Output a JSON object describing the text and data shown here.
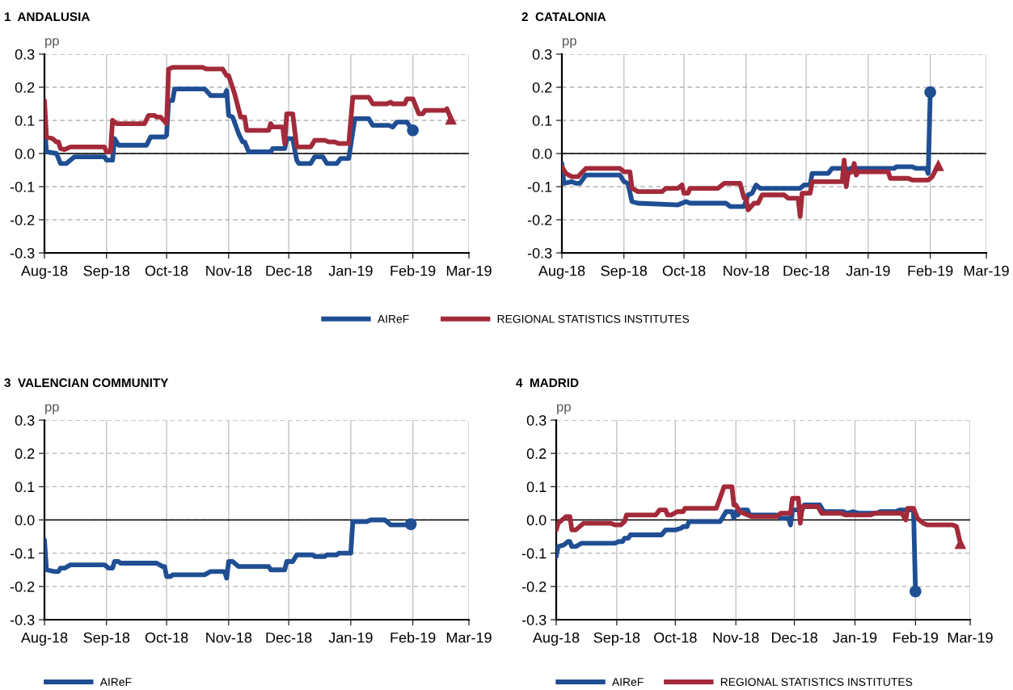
{
  "chart_data": [
    {
      "type": "line",
      "title": "1  ANDALUSIA",
      "ylabel": "pp",
      "legend": "bottom",
      "grid": true,
      "line_style": "solid",
      "xlim": [
        "2018-08-01",
        "2019-03-01"
      ],
      "xticks": [
        {
          "value": "2018-08-01",
          "label": "Aug-18"
        },
        {
          "value": "2018-09-01",
          "label": "Sep-18"
        },
        {
          "value": "2018-10-01",
          "label": "Oct-18"
        },
        {
          "value": "2018-11-01",
          "label": "Nov-18"
        },
        {
          "value": "2018-12-01",
          "label": "Dec-18"
        },
        {
          "value": "2019-01-01",
          "label": "Jan-19"
        },
        {
          "value": "2019-02-01",
          "label": "Feb-19"
        },
        {
          "value": "2019-03-01",
          "label": "Mar-19"
        }
      ],
      "ylim": [
        -0.3,
        0.3
      ],
      "yticks": [
        {
          "value": -0.3,
          "label": "-0.3"
        },
        {
          "value": -0.2,
          "label": "-0.2"
        },
        {
          "value": -0.1,
          "label": "-0.1"
        },
        {
          "value": 0,
          "label": "0.0"
        },
        {
          "value": 0.1,
          "label": "0.1"
        },
        {
          "value": 0.2,
          "label": "0.2"
        },
        {
          "value": 0.3,
          "label": "0.3"
        }
      ],
      "ref_lines": [
        {
          "axis": "y",
          "value": 0,
          "color": "#000000",
          "line_style": "solid"
        }
      ],
      "series": [
        {
          "name": "AIReF",
          "color": "#1f4e93",
          "x": [
            "2018-08-01",
            "2018-08-02",
            "2018-08-07",
            "2018-08-09",
            "2018-08-12",
            "2018-08-16",
            "2018-08-31",
            "2018-09-01",
            "2018-09-04",
            "2018-09-05",
            "2018-09-07",
            "2018-09-21",
            "2018-09-23",
            "2018-09-30",
            "2018-10-01",
            "2018-10-02",
            "2018-10-04",
            "2018-10-05",
            "2018-10-20",
            "2018-10-23",
            "2018-10-30",
            "2018-10-31",
            "2018-11-01",
            "2018-11-03",
            "2018-11-06",
            "2018-11-08",
            "2018-11-09",
            "2018-11-11",
            "2018-11-22",
            "2018-11-23",
            "2018-11-29",
            "2018-11-30",
            "2018-12-03",
            "2018-12-05",
            "2018-12-06",
            "2018-12-12",
            "2018-12-14",
            "2018-12-18",
            "2018-12-20",
            "2018-12-25",
            "2018-12-27",
            "2018-12-31",
            "2019-01-03",
            "2019-01-10",
            "2019-01-12",
            "2019-01-20",
            "2019-01-22",
            "2019-01-24",
            "2019-01-29",
            "2019-02-01"
          ],
          "values": [
            0.09,
            0.005,
            0.0,
            -0.03,
            -0.03,
            -0.01,
            -0.01,
            -0.02,
            -0.02,
            0.045,
            0.025,
            0.025,
            0.05,
            0.05,
            0.055,
            0.16,
            0.16,
            0.195,
            0.195,
            0.175,
            0.175,
            0.19,
            0.115,
            0.11,
            0.06,
            0.035,
            0.035,
            0.005,
            0.005,
            0.015,
            0.015,
            0.045,
            0.045,
            -0.02,
            -0.03,
            -0.03,
            -0.01,
            -0.01,
            -0.03,
            -0.03,
            -0.015,
            -0.015,
            0.105,
            0.105,
            0.085,
            0.085,
            0.08,
            0.095,
            0.095,
            0.07
          ]
        },
        {
          "name": "REGIONAL STATISTICS INSTITUTES",
          "color": "#a32a3a",
          "x": [
            "2018-08-01",
            "2018-08-02",
            "2018-08-05",
            "2018-08-07",
            "2018-08-08",
            "2018-08-09",
            "2018-08-11",
            "2018-08-14",
            "2018-08-31",
            "2018-09-01",
            "2018-09-03",
            "2018-09-04",
            "2018-09-06",
            "2018-09-20",
            "2018-09-22",
            "2018-09-25",
            "2018-09-26",
            "2018-09-28",
            "2018-10-01",
            "2018-10-02",
            "2018-10-04",
            "2018-10-19",
            "2018-10-21",
            "2018-10-29",
            "2018-10-31",
            "2018-11-01",
            "2018-11-04",
            "2018-11-07",
            "2018-11-09",
            "2018-11-10",
            "2018-11-21",
            "2018-11-22",
            "2018-11-23",
            "2018-11-28",
            "2018-11-29",
            "2018-11-30",
            "2018-12-03",
            "2018-12-05",
            "2018-12-12",
            "2018-12-14",
            "2018-12-19",
            "2018-12-21",
            "2018-12-24",
            "2018-12-26",
            "2018-12-31",
            "2019-01-02",
            "2019-01-10",
            "2019-01-12",
            "2019-01-19",
            "2019-01-21",
            "2019-01-22",
            "2019-01-28",
            "2019-01-29",
            "2019-02-01",
            "2019-02-04",
            "2019-02-06",
            "2019-02-07",
            "2019-02-17",
            "2019-02-18",
            "2019-02-20"
          ],
          "values": [
            0.16,
            0.05,
            0.045,
            0.035,
            0.035,
            0.015,
            0.012,
            0.02,
            0.02,
            0.005,
            0.005,
            0.1,
            0.09,
            0.09,
            0.115,
            0.115,
            0.11,
            0.11,
            0.09,
            0.255,
            0.26,
            0.26,
            0.255,
            0.255,
            0.235,
            0.235,
            0.18,
            0.11,
            0.11,
            0.07,
            0.07,
            0.09,
            0.08,
            0.08,
            0.03,
            0.12,
            0.12,
            0.02,
            0.02,
            0.04,
            0.04,
            0.035,
            0.035,
            0.03,
            0.03,
            0.17,
            0.17,
            0.15,
            0.15,
            0.155,
            0.15,
            0.15,
            0.165,
            0.165,
            0.12,
            0.12,
            0.13,
            0.13,
            0.135,
            0.105
          ]
        },
        {
          "type": "scatter",
          "marker": "circle",
          "color": "#1f4e93",
          "x": [
            "2019-02-01"
          ],
          "values": [
            0.07
          ]
        },
        {
          "type": "scatter",
          "marker": "triangle",
          "color": "#a32a3a",
          "x": [
            "2019-02-20"
          ],
          "values": [
            0.105
          ]
        }
      ]
    },
    {
      "type": "line",
      "title": "2  CATALONIA",
      "ylabel": "pp",
      "grid": true,
      "line_style": "solid",
      "xlim": [
        "2018-08-01",
        "2019-03-01"
      ],
      "xticks": [
        {
          "value": "2018-08-01",
          "label": "Aug-18"
        },
        {
          "value": "2018-09-01",
          "label": "Sep-18"
        },
        {
          "value": "2018-10-01",
          "label": "Oct-18"
        },
        {
          "value": "2018-11-01",
          "label": "Nov-18"
        },
        {
          "value": "2018-12-01",
          "label": "Dec-18"
        },
        {
          "value": "2019-01-01",
          "label": "Jan-19"
        },
        {
          "value": "2019-02-01",
          "label": "Feb-19"
        },
        {
          "value": "2019-03-01",
          "label": "Mar-19"
        }
      ],
      "ylim": [
        -0.3,
        0.3
      ],
      "yticks": [
        {
          "value": -0.3,
          "label": "-0.3"
        },
        {
          "value": -0.2,
          "label": "-0.2"
        },
        {
          "value": -0.1,
          "label": "-0.1"
        },
        {
          "value": 0,
          "label": "0.0"
        },
        {
          "value": 0.1,
          "label": "0.1"
        },
        {
          "value": 0.2,
          "label": "0.2"
        },
        {
          "value": 0.3,
          "label": "0.3"
        }
      ],
      "ref_lines": [
        {
          "axis": "y",
          "value": 0,
          "color": "#000000",
          "line_style": "solid"
        }
      ],
      "series": [
        {
          "color": "#1f4e93",
          "x": [
            "2018-08-01",
            "2018-08-02",
            "2018-08-06",
            "2018-08-08",
            "2018-08-10",
            "2018-08-13",
            "2018-08-30",
            "2018-09-01",
            "2018-09-03",
            "2018-09-05",
            "2018-09-08",
            "2018-09-28",
            "2018-10-02",
            "2018-10-04",
            "2018-10-22",
            "2018-10-24",
            "2018-10-31",
            "2018-11-02",
            "2018-11-04",
            "2018-11-06",
            "2018-11-08",
            "2018-11-28",
            "2018-11-30",
            "2018-12-03",
            "2018-12-04",
            "2018-12-12",
            "2018-12-14",
            "2018-12-21",
            "2018-12-22",
            "2018-12-23",
            "2019-01-14",
            "2019-01-15",
            "2019-01-23",
            "2019-01-25",
            "2019-01-30",
            "2019-01-31",
            "2019-02-01"
          ],
          "values": [
            -0.03,
            -0.09,
            -0.085,
            -0.09,
            -0.09,
            -0.065,
            -0.065,
            -0.085,
            -0.09,
            -0.145,
            -0.15,
            -0.155,
            -0.145,
            -0.15,
            -0.15,
            -0.16,
            -0.16,
            -0.125,
            -0.12,
            -0.095,
            -0.105,
            -0.105,
            -0.095,
            -0.095,
            -0.06,
            -0.06,
            -0.045,
            -0.045,
            -0.055,
            -0.045,
            -0.045,
            -0.04,
            -0.04,
            -0.045,
            -0.045,
            -0.06,
            0.185
          ]
        },
        {
          "color": "#a32a3a",
          "x": [
            "2018-08-01",
            "2018-08-03",
            "2018-08-06",
            "2018-08-09",
            "2018-08-13",
            "2018-08-30",
            "2018-09-01",
            "2018-09-04",
            "2018-09-05",
            "2018-09-08",
            "2018-09-20",
            "2018-09-22",
            "2018-09-28",
            "2018-09-30",
            "2018-10-01",
            "2018-10-03",
            "2018-10-04",
            "2018-10-18",
            "2018-10-21",
            "2018-10-29",
            "2018-10-31",
            "2018-11-01",
            "2018-11-02",
            "2018-11-05",
            "2018-11-07",
            "2018-11-09",
            "2018-11-20",
            "2018-11-22",
            "2018-11-27",
            "2018-11-28",
            "2018-11-29",
            "2018-12-03",
            "2018-12-04",
            "2018-12-19",
            "2018-12-20",
            "2018-12-21",
            "2018-12-22",
            "2018-12-24",
            "2018-12-25",
            "2018-12-26",
            "2018-12-27",
            "2019-01-11",
            "2019-01-12",
            "2019-01-21",
            "2019-01-23",
            "2019-01-31",
            "2019-02-02",
            "2019-02-05"
          ],
          "values": [
            -0.04,
            -0.06,
            -0.07,
            -0.07,
            -0.045,
            -0.045,
            -0.055,
            -0.055,
            -0.105,
            -0.115,
            -0.115,
            -0.105,
            -0.105,
            -0.095,
            -0.12,
            -0.12,
            -0.105,
            -0.105,
            -0.09,
            -0.09,
            -0.135,
            -0.135,
            -0.17,
            -0.15,
            -0.15,
            -0.125,
            -0.125,
            -0.135,
            -0.135,
            -0.19,
            -0.12,
            -0.12,
            -0.085,
            -0.085,
            -0.02,
            -0.1,
            -0.06,
            -0.055,
            -0.03,
            -0.065,
            -0.055,
            -0.055,
            -0.075,
            -0.075,
            -0.08,
            -0.08,
            -0.07,
            -0.035
          ]
        },
        {
          "type": "scatter",
          "marker": "circle",
          "color": "#1f4e93",
          "x": [
            "2019-02-01"
          ],
          "values": [
            0.185
          ]
        },
        {
          "type": "scatter",
          "marker": "triangle",
          "color": "#a32a3a",
          "x": [
            "2019-02-05"
          ],
          "values": [
            -0.035
          ]
        }
      ]
    },
    {
      "type": "line",
      "title": "3  VALENCIAN COMMUNITY",
      "ylabel": "pp",
      "legend": "bottom left",
      "grid": true,
      "line_style": "solid",
      "xlim": [
        "2018-08-01",
        "2019-03-01"
      ],
      "xticks": [
        {
          "value": "2018-08-01",
          "label": "Aug-18"
        },
        {
          "value": "2018-09-01",
          "label": "Sep-18"
        },
        {
          "value": "2018-10-01",
          "label": "Oct-18"
        },
        {
          "value": "2018-11-01",
          "label": "Nov-18"
        },
        {
          "value": "2018-12-01",
          "label": "Dec-18"
        },
        {
          "value": "2019-01-01",
          "label": "Jan-19"
        },
        {
          "value": "2019-02-01",
          "label": "Feb-19"
        },
        {
          "value": "2019-03-01",
          "label": "Mar-19"
        }
      ],
      "ylim": [
        -0.3,
        0.3
      ],
      "yticks": [
        {
          "value": -0.3,
          "label": "-0.3"
        },
        {
          "value": -0.2,
          "label": "-0.2"
        },
        {
          "value": -0.1,
          "label": "-0.1"
        },
        {
          "value": 0,
          "label": "0.0"
        },
        {
          "value": 0.1,
          "label": "0.1"
        },
        {
          "value": 0.2,
          "label": "0.2"
        },
        {
          "value": 0.3,
          "label": "0.3"
        }
      ],
      "ref_lines": [
        {
          "axis": "y",
          "value": 0,
          "color": "#000000",
          "line_style": "solid"
        }
      ],
      "series": [
        {
          "name": "AIReF",
          "color": "#1f4e93",
          "x": [
            "2018-08-01",
            "2018-08-02",
            "2018-08-06",
            "2018-08-08",
            "2018-08-09",
            "2018-08-11",
            "2018-08-14",
            "2018-08-31",
            "2018-09-02",
            "2018-09-04",
            "2018-09-05",
            "2018-09-07",
            "2018-09-08",
            "2018-09-22",
            "2018-09-26",
            "2018-09-29",
            "2018-09-30",
            "2018-10-01",
            "2018-10-03",
            "2018-10-04",
            "2018-10-20",
            "2018-10-23",
            "2018-10-30",
            "2018-10-31",
            "2018-11-01",
            "2018-11-03",
            "2018-11-06",
            "2018-11-21",
            "2018-11-22",
            "2018-11-29",
            "2018-11-30",
            "2018-12-03",
            "2018-12-05",
            "2018-12-13",
            "2018-12-14",
            "2018-12-19",
            "2018-12-20",
            "2018-12-25",
            "2018-12-26",
            "2019-01-01",
            "2019-01-02",
            "2019-01-09",
            "2019-01-11",
            "2019-01-18",
            "2019-01-21",
            "2019-01-29",
            "2019-01-31"
          ],
          "values": [
            -0.06,
            -0.15,
            -0.155,
            -0.155,
            -0.145,
            -0.145,
            -0.135,
            -0.135,
            -0.145,
            -0.145,
            -0.125,
            -0.125,
            -0.13,
            -0.13,
            -0.13,
            -0.14,
            -0.14,
            -0.17,
            -0.17,
            -0.165,
            -0.165,
            -0.155,
            -0.155,
            -0.175,
            -0.125,
            -0.125,
            -0.14,
            -0.14,
            -0.15,
            -0.15,
            -0.125,
            -0.125,
            -0.105,
            -0.105,
            -0.11,
            -0.11,
            -0.105,
            -0.105,
            -0.1,
            -0.1,
            -0.005,
            -0.005,
            0.0,
            0.0,
            -0.015,
            -0.015,
            -0.013
          ]
        },
        {
          "type": "scatter",
          "marker": "circle",
          "color": "#1f4e93",
          "x": [
            "2019-01-31"
          ],
          "values": [
            -0.013
          ]
        }
      ]
    },
    {
      "type": "line",
      "title": "4  MADRID",
      "ylabel": "pp",
      "legend": "bottom left",
      "grid": true,
      "line_style": "solid",
      "xlim": [
        "2018-08-01",
        "2019-03-01"
      ],
      "xticks": [
        {
          "value": "2018-08-01",
          "label": "Aug-18"
        },
        {
          "value": "2018-09-01",
          "label": "Sep-18"
        },
        {
          "value": "2018-10-01",
          "label": "Oct-18"
        },
        {
          "value": "2018-11-01",
          "label": "Nov-18"
        },
        {
          "value": "2018-12-01",
          "label": "Dec-18"
        },
        {
          "value": "2019-01-01",
          "label": "Jan-19"
        },
        {
          "value": "2019-02-01",
          "label": "Feb-19"
        },
        {
          "value": "2019-03-01",
          "label": "Mar-19"
        }
      ],
      "ylim": [
        -0.3,
        0.3
      ],
      "yticks": [
        {
          "value": -0.3,
          "label": "-0.3"
        },
        {
          "value": -0.2,
          "label": "-0.2"
        },
        {
          "value": -0.1,
          "label": "-0.1"
        },
        {
          "value": 0,
          "label": "0.0"
        },
        {
          "value": 0.1,
          "label": "0.1"
        },
        {
          "value": 0.2,
          "label": "0.2"
        },
        {
          "value": 0.3,
          "label": "0.3"
        }
      ],
      "ref_lines": [
        {
          "axis": "y",
          "value": 0,
          "color": "#000000",
          "line_style": "solid"
        }
      ],
      "series": [
        {
          "name": "AIReF",
          "color": "#1f4e93",
          "x": [
            "2018-08-01",
            "2018-08-02",
            "2018-08-05",
            "2018-08-07",
            "2018-08-08",
            "2018-08-09",
            "2018-08-11",
            "2018-08-14",
            "2018-08-31",
            "2018-09-02",
            "2018-09-04",
            "2018-09-05",
            "2018-09-07",
            "2018-09-08",
            "2018-09-24",
            "2018-09-26",
            "2018-10-01",
            "2018-10-04",
            "2018-10-05",
            "2018-10-07",
            "2018-10-08",
            "2018-10-24",
            "2018-10-27",
            "2018-10-30",
            "2018-10-31",
            "2018-11-01",
            "2018-11-02",
            "2018-11-04",
            "2018-11-07",
            "2018-11-08",
            "2018-11-22",
            "2018-11-24",
            "2018-11-28",
            "2018-11-29",
            "2018-11-30",
            "2018-12-05",
            "2018-12-06",
            "2018-12-14",
            "2018-12-16",
            "2018-12-26",
            "2018-12-28",
            "2018-12-31",
            "2019-01-03",
            "2019-01-12",
            "2019-01-14",
            "2019-01-22",
            "2019-01-24",
            "2019-01-31",
            "2019-02-01"
          ],
          "values": [
            -0.11,
            -0.08,
            -0.075,
            -0.065,
            -0.065,
            -0.08,
            -0.08,
            -0.07,
            -0.07,
            -0.065,
            -0.065,
            -0.055,
            -0.055,
            -0.045,
            -0.045,
            -0.03,
            -0.03,
            -0.025,
            -0.02,
            -0.02,
            -0.005,
            -0.005,
            0.025,
            0.025,
            0.005,
            0.025,
            0.015,
            0.03,
            0.03,
            0.015,
            0.015,
            0.005,
            0.005,
            -0.015,
            0.03,
            0.03,
            0.045,
            0.045,
            0.025,
            0.025,
            0.02,
            0.025,
            0.02,
            0.02,
            0.025,
            0.025,
            0.03,
            0.03,
            -0.215
          ]
        },
        {
          "name": "REGIONAL STATISTICS INSTITUTES",
          "color": "#a32a3a",
          "x": [
            "2018-08-01",
            "2018-08-02",
            "2018-08-06",
            "2018-08-08",
            "2018-08-09",
            "2018-08-11",
            "2018-08-15",
            "2018-08-29",
            "2018-08-31",
            "2018-09-03",
            "2018-09-05",
            "2018-09-06",
            "2018-09-21",
            "2018-09-23",
            "2018-09-26",
            "2018-09-27",
            "2018-09-29",
            "2018-10-02",
            "2018-10-05",
            "2018-10-06",
            "2018-10-22",
            "2018-10-26",
            "2018-10-30",
            "2018-10-31",
            "2018-11-01",
            "2018-11-03",
            "2018-11-07",
            "2018-11-09",
            "2018-11-22",
            "2018-11-24",
            "2018-11-29",
            "2018-11-30",
            "2018-12-03",
            "2018-12-04",
            "2018-12-05",
            "2018-12-13",
            "2018-12-15",
            "2018-12-25",
            "2018-12-27",
            "2019-01-09",
            "2019-01-11",
            "2019-01-25",
            "2019-01-27",
            "2019-01-28",
            "2019-01-31",
            "2019-02-02",
            "2019-02-05",
            "2019-02-07",
            "2019-02-20",
            "2019-02-22",
            "2019-02-24"
          ],
          "values": [
            -0.03,
            -0.01,
            0.01,
            0.01,
            -0.03,
            -0.03,
            -0.01,
            -0.01,
            -0.015,
            -0.015,
            -0.005,
            0.015,
            0.015,
            0.03,
            0.03,
            0.015,
            0.015,
            0.025,
            0.025,
            0.035,
            0.035,
            0.1,
            0.1,
            0.045,
            0.045,
            0.025,
            0.015,
            0.01,
            0.01,
            0.02,
            0.02,
            0.065,
            0.065,
            -0.01,
            0.04,
            0.04,
            0.02,
            0.02,
            0.015,
            0.015,
            0.02,
            0.02,
            0.0,
            0.035,
            0.035,
            0.005,
            -0.01,
            -0.015,
            -0.015,
            -0.02,
            -0.07
          ]
        },
        {
          "type": "scatter",
          "marker": "circle",
          "color": "#1f4e93",
          "x": [
            "2019-02-01"
          ],
          "values": [
            -0.215
          ]
        },
        {
          "type": "scatter",
          "marker": "triangle",
          "color": "#a32a3a",
          "x": [
            "2019-02-24"
          ],
          "values": [
            -0.07
          ]
        }
      ]
    }
  ]
}
